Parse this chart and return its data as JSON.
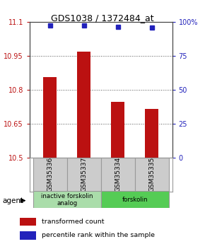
{
  "title": "GDS1038 / 1372484_at",
  "samples": [
    "GSM35336",
    "GSM35337",
    "GSM35334",
    "GSM35335"
  ],
  "red_values": [
    10.855,
    10.97,
    10.745,
    10.715
  ],
  "blue_values": [
    97.5,
    97.5,
    96.5,
    96.0
  ],
  "ylim_left": [
    10.5,
    11.1
  ],
  "ylim_right": [
    0,
    100
  ],
  "yticks_left": [
    10.5,
    10.65,
    10.8,
    10.95,
    11.1
  ],
  "yticks_right": [
    0,
    25,
    50,
    75,
    100
  ],
  "ytick_labels_left": [
    "10.5",
    "10.65",
    "10.8",
    "10.95",
    "11.1"
  ],
  "ytick_labels_right": [
    "0",
    "25",
    "50",
    "75",
    "100%"
  ],
  "groups": [
    {
      "label": "inactive forskolin\nanalog",
      "color": "#aaddaa"
    },
    {
      "label": "forskolin",
      "color": "#55cc55"
    }
  ],
  "bar_color": "#bb1111",
  "dot_color": "#2222bb",
  "grid_color": "#555555",
  "bg_color": "#ffffff",
  "legend_red_label": "transformed count",
  "legend_blue_label": "percentile rank within the sample",
  "agent_label": "agent",
  "x_positions": [
    0,
    1,
    2,
    3
  ],
  "bar_width": 0.4,
  "sample_label_color": "#cccccc",
  "sample_border_color": "#999999"
}
